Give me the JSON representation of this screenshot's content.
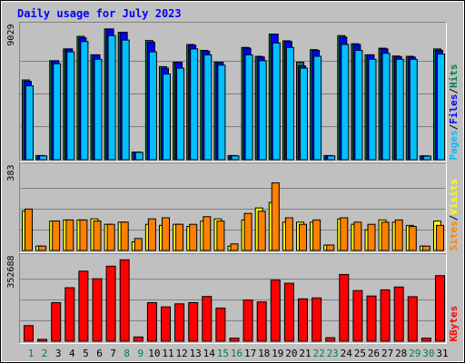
{
  "chart_data": [
    {
      "type": "bar",
      "title": "Daily usage for July 2023",
      "categories": [
        "1",
        "2",
        "3",
        "4",
        "5",
        "6",
        "7",
        "8",
        "9",
        "10",
        "11",
        "12",
        "13",
        "14",
        "15",
        "16",
        "17",
        "18",
        "19",
        "20",
        "21",
        "22",
        "23",
        "24",
        "25",
        "26",
        "27",
        "28",
        "29",
        "30",
        "31"
      ],
      "weekend_days": [
        "1",
        "2",
        "8",
        "9",
        "15",
        "16",
        "22",
        "23",
        "29",
        "30"
      ],
      "ymax_label": "9029",
      "ylim": [
        0,
        9029
      ],
      "legend": [
        "Pages",
        "Files",
        "Hits"
      ],
      "legend_separator": "/",
      "series": [
        {
          "name": "Hits",
          "color": "#008040",
          "values": [
            5400,
            280,
            6700,
            7500,
            8350,
            7100,
            8850,
            8620,
            520,
            8070,
            6300,
            6600,
            7800,
            7400,
            6600,
            280,
            7600,
            7000,
            8500,
            8050,
            6600,
            7450,
            280,
            8400,
            7850,
            7100,
            7550,
            7020,
            7000,
            260,
            7500
          ]
        },
        {
          "name": "Files",
          "color": "#0000ff",
          "values": [
            5300,
            280,
            6700,
            7500,
            8250,
            7100,
            8850,
            8620,
            520,
            7950,
            6200,
            6600,
            7750,
            7350,
            6600,
            280,
            7550,
            6950,
            8500,
            8000,
            6350,
            7400,
            280,
            8300,
            7800,
            7100,
            7500,
            6980,
            6950,
            260,
            7400
          ]
        },
        {
          "name": "Pages",
          "color": "#00c0ff",
          "values": [
            5000,
            260,
            6500,
            7300,
            8000,
            6800,
            8400,
            8100,
            500,
            7300,
            5800,
            6200,
            7500,
            7100,
            6400,
            260,
            7100,
            6700,
            7900,
            7600,
            6200,
            7000,
            260,
            7800,
            7400,
            6800,
            7200,
            6800,
            6800,
            240,
            7150
          ]
        }
      ]
    },
    {
      "type": "bar",
      "categories": [
        "1",
        "2",
        "3",
        "4",
        "5",
        "6",
        "7",
        "8",
        "9",
        "10",
        "11",
        "12",
        "13",
        "14",
        "15",
        "16",
        "17",
        "18",
        "19",
        "20",
        "21",
        "22",
        "23",
        "24",
        "25",
        "26",
        "27",
        "28",
        "29",
        "30",
        "31"
      ],
      "ymax_label": "383",
      "ylim": [
        0,
        383
      ],
      "legend": [
        "Sites",
        "Visits"
      ],
      "legend_separator": "/",
      "series": [
        {
          "name": "Visits",
          "color": "#ffff00",
          "values": [
            180,
            20,
            135,
            140,
            140,
            145,
            120,
            130,
            40,
            120,
            115,
            120,
            110,
            135,
            145,
            20,
            140,
            195,
            220,
            130,
            130,
            130,
            25,
            145,
            120,
            95,
            140,
            130,
            115,
            20,
            135
          ]
        },
        {
          "name": "Sites",
          "color": "#ff8000",
          "values": [
            190,
            20,
            135,
            140,
            140,
            135,
            120,
            130,
            55,
            145,
            150,
            120,
            120,
            155,
            135,
            30,
            170,
            180,
            310,
            150,
            120,
            140,
            25,
            150,
            130,
            120,
            130,
            140,
            110,
            20,
            115
          ]
        }
      ]
    },
    {
      "type": "bar",
      "categories": [
        "1",
        "2",
        "3",
        "4",
        "5",
        "6",
        "7",
        "8",
        "9",
        "10",
        "11",
        "12",
        "13",
        "14",
        "15",
        "16",
        "17",
        "18",
        "19",
        "20",
        "21",
        "22",
        "23",
        "24",
        "25",
        "26",
        "27",
        "28",
        "29",
        "30",
        "31"
      ],
      "ymax_label": "352688",
      "ylim": [
        0,
        352688
      ],
      "legend": [
        "KBytes"
      ],
      "series": [
        {
          "name": "KBytes",
          "color": "#ff0000",
          "values": [
            66000,
            8000,
            163000,
            226000,
            296000,
            264000,
            317000,
            344000,
            18000,
            163000,
            145000,
            158000,
            163000,
            189000,
            140000,
            13000,
            174000,
            166000,
            258000,
            245000,
            179000,
            183000,
            15000,
            282000,
            214000,
            191000,
            217000,
            229000,
            188000,
            13000,
            277000
          ]
        }
      ]
    }
  ]
}
